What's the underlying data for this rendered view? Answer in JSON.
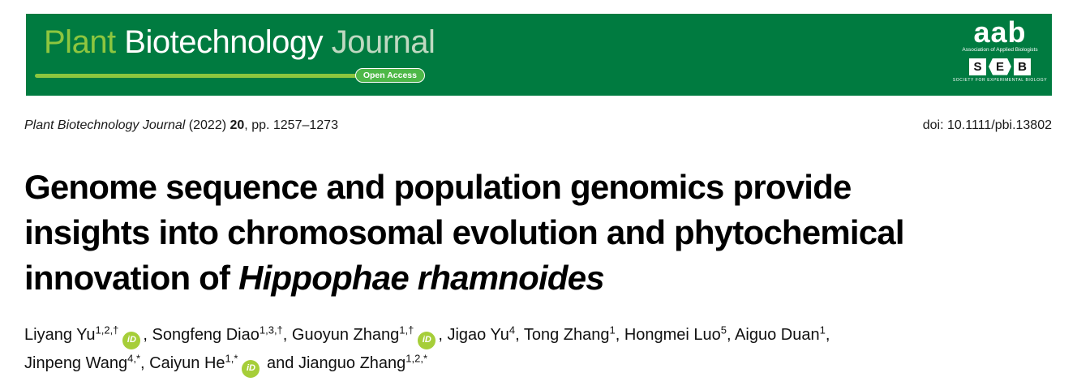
{
  "banner": {
    "masthead": {
      "word1": "Plant",
      "word2": "Biotechnology",
      "word3": "Journal"
    },
    "open_access_label": "Open Access",
    "colors": {
      "banner_bg": "#007B40",
      "word1_color": "#8DC63F",
      "word3_color": "#BFD9C1",
      "accent_line": "#8CC63F",
      "pill_bg": "#4DB848"
    }
  },
  "logos": {
    "aab_acronym": "aab",
    "aab_name": "Association of Applied Biologists",
    "seb_letters": [
      "S",
      "E",
      "B"
    ],
    "seb_name": "SOCIETY FOR EXPERIMENTAL BIOLOGY"
  },
  "citation": {
    "journal": "Plant Biotechnology Journal",
    "year": " (2022) ",
    "volume": "20",
    "pages": ", pp. 1257–1273",
    "doi": "doi: 10.1111/pbi.13802"
  },
  "title": {
    "line1": "Genome sequence and population genomics provide",
    "line2": "insights into chromosomal evolution and phytochemical",
    "line3_plain": "innovation of ",
    "line3_species": "Hippophae rhamnoides"
  },
  "authors": {
    "orcid_label": "iD",
    "orcid_color": "#A6CE39",
    "list": [
      {
        "name": "Liyang Yu",
        "sup": "1,2,†",
        "sep": ", "
      },
      {
        "name": "Songfeng Diao",
        "sup": "1,3,†",
        "sep": ", "
      },
      {
        "name": "Guoyun Zhang",
        "sup": "1,†",
        "sep": ", "
      },
      {
        "name": "Jigao Yu",
        "sup": "4",
        "sep": ", "
      },
      {
        "name": "Tong Zhang",
        "sup": "1",
        "sep": ", "
      },
      {
        "name": "Hongmei Luo",
        "sup": "5",
        "sep": ", "
      },
      {
        "name": "Aiguo Duan",
        "sup": "1",
        "sep": ","
      },
      {
        "name": "Jinpeng Wang",
        "sup": "4,*",
        "sep": ", "
      },
      {
        "name": "Caiyun He",
        "sup": "1,*",
        "sep": ""
      },
      {
        "prefix": "and ",
        "name": "Jianguo Zhang",
        "sup": "1,2,*",
        "sep": ""
      }
    ]
  }
}
